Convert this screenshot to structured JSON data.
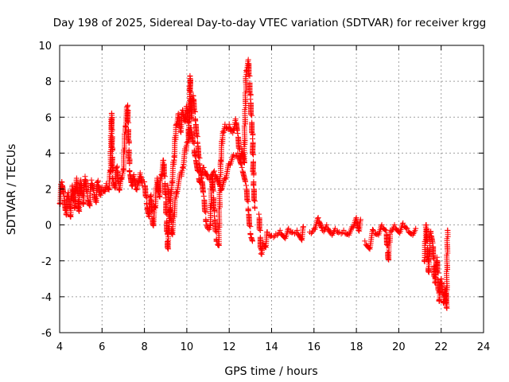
{
  "chart_data": {
    "type": "scatter",
    "title": "Day 198 of 2025, Sidereal Day-to-day VTEC variation (SDTVAR) for receiver krgg",
    "xlabel": "GPS time / hours",
    "ylabel": "SDTVAR / TECUs",
    "xlim": [
      4,
      24
    ],
    "ylim": [
      -6,
      10
    ],
    "x_ticks": [
      "4",
      "6",
      "8",
      "10",
      "12",
      "14",
      "16",
      "18",
      "20",
      "22",
      "24"
    ],
    "y_ticks": [
      "-6",
      "-4",
      "-2",
      "0",
      "2",
      "4",
      "6",
      "8",
      "10"
    ],
    "grid": true,
    "marker": "+",
    "series": [
      {
        "name": "SDTVAR",
        "color": "#ff0000",
        "segments": [
          [
            [
              4.0,
              1.2
            ],
            [
              4.1,
              2.4
            ],
            [
              4.2,
              1.6
            ],
            [
              4.3,
              0.6
            ],
            [
              4.4,
              1.8
            ],
            [
              4.5,
              0.5
            ],
            [
              4.6,
              2.2
            ],
            [
              4.7,
              1.0
            ],
            [
              4.8,
              2.6
            ],
            [
              4.9,
              0.8
            ],
            [
              5.0,
              2.5
            ],
            [
              5.1,
              1.2
            ],
            [
              5.2,
              2.7
            ],
            [
              5.3,
              1.6
            ],
            [
              5.4,
              1.1
            ],
            [
              5.5,
              2.5
            ],
            [
              5.6,
              1.9
            ],
            [
              5.7,
              1.3
            ],
            [
              5.8,
              2.4
            ],
            [
              5.9,
              1.7
            ],
            [
              6.0,
              2.1
            ],
            [
              6.1,
              1.9
            ],
            [
              6.2,
              2.3
            ],
            [
              6.3,
              2.0
            ],
            [
              6.4,
              3.0
            ],
            [
              6.45,
              6.2
            ],
            [
              6.5,
              2.6
            ],
            [
              6.6,
              2.1
            ],
            [
              6.7,
              3.2
            ],
            [
              6.8,
              2.0
            ],
            [
              6.9,
              2.6
            ],
            [
              7.0,
              3.1
            ],
            [
              7.1,
              5.5
            ],
            [
              7.2,
              6.6
            ],
            [
              7.3,
              3.0
            ],
            [
              7.4,
              2.2
            ],
            [
              7.5,
              2.8
            ],
            [
              7.6,
              2.0
            ],
            [
              7.7,
              2.4
            ],
            [
              7.8,
              2.9
            ],
            [
              7.9,
              2.2
            ]
          ],
          [
            [
              8.0,
              2.4
            ],
            [
              8.1,
              1.2
            ],
            [
              8.2,
              0.5
            ],
            [
              8.3,
              1.6
            ],
            [
              8.4,
              0.0
            ],
            [
              8.5,
              1.0
            ],
            [
              8.6,
              2.6
            ],
            [
              8.7,
              1.6
            ],
            [
              8.8,
              2.8
            ],
            [
              8.9,
              3.6
            ],
            [
              9.0,
              1.5
            ],
            [
              9.1,
              -1.3
            ],
            [
              9.2,
              0.8
            ],
            [
              9.3,
              2.4
            ],
            [
              9.4,
              3.8
            ],
            [
              9.5,
              5.6
            ],
            [
              9.6,
              6.2
            ],
            [
              9.7,
              5.2
            ],
            [
              9.8,
              6.4
            ],
            [
              9.9,
              5.8
            ],
            [
              10.0,
              6.6
            ],
            [
              10.1,
              4.8
            ],
            [
              10.15,
              8.3
            ],
            [
              10.2,
              6.0
            ],
            [
              10.3,
              7.2
            ],
            [
              10.4,
              5.8
            ],
            [
              10.5,
              4.6
            ],
            [
              10.6,
              3.4
            ],
            [
              10.7,
              2.6
            ],
            [
              10.8,
              1.6
            ],
            [
              10.9,
              0.2
            ],
            [
              11.0,
              -0.2
            ],
            [
              11.1,
              0.0
            ],
            [
              11.2,
              2.8
            ],
            [
              11.3,
              0.5
            ],
            [
              11.4,
              -0.9
            ],
            [
              11.5,
              -1.1
            ],
            [
              11.6,
              3.6
            ],
            [
              11.7,
              5.2
            ],
            [
              11.8,
              5.6
            ],
            [
              11.9,
              5.4
            ],
            [
              12.0,
              5.6
            ],
            [
              12.1,
              5.2
            ],
            [
              12.2,
              5.3
            ],
            [
              12.3,
              5.9
            ],
            [
              12.4,
              5.1
            ],
            [
              12.5,
              3.8
            ],
            [
              12.6,
              4.2
            ],
            [
              12.7,
              3.5
            ],
            [
              12.8,
              8.6
            ],
            [
              12.9,
              9.2
            ],
            [
              13.0,
              7.0
            ],
            [
              13.1,
              4.8
            ],
            [
              13.15,
              2.2
            ],
            [
              13.2,
              1.0
            ]
          ],
          [
            [
              9.1,
              2.2
            ],
            [
              9.3,
              -0.5
            ],
            [
              9.5,
              1.8
            ],
            [
              9.8,
              3.2
            ],
            [
              10.0,
              4.6
            ],
            [
              10.2,
              5.4
            ],
            [
              10.4,
              3.8
            ],
            [
              10.6,
              2.4
            ],
            [
              10.8,
              3.2
            ],
            [
              11.0,
              2.6
            ],
            [
              11.3,
              3.0
            ],
            [
              11.6,
              2.0
            ],
            [
              11.8,
              2.6
            ],
            [
              12.0,
              3.4
            ],
            [
              12.2,
              3.9
            ],
            [
              12.4,
              4.0
            ],
            [
              12.6,
              3.2
            ],
            [
              12.8,
              2.2
            ],
            [
              12.9,
              0.8
            ],
            [
              13.0,
              -0.5
            ],
            [
              13.1,
              -0.9
            ]
          ],
          [
            [
              13.4,
              0.6
            ],
            [
              13.5,
              -1.6
            ],
            [
              13.6,
              -1.0
            ],
            [
              13.7,
              -1.2
            ],
            [
              13.8,
              -0.4
            ],
            [
              14.0,
              -0.6
            ],
            [
              14.2,
              -0.5
            ],
            [
              14.4,
              -0.3
            ],
            [
              14.6,
              -0.7
            ],
            [
              14.8,
              -0.2
            ],
            [
              15.0,
              -0.4
            ],
            [
              15.2,
              -0.3
            ],
            [
              15.4,
              -0.8
            ],
            [
              15.5,
              -0.1
            ]
          ],
          [
            [
              15.8,
              -0.4
            ],
            [
              16.0,
              -0.2
            ],
            [
              16.2,
              0.4
            ],
            [
              16.4,
              -0.3
            ],
            [
              16.6,
              0.0
            ],
            [
              16.8,
              -0.5
            ],
            [
              17.0,
              -0.2
            ],
            [
              17.2,
              -0.4
            ],
            [
              17.4,
              -0.3
            ],
            [
              17.6,
              -0.5
            ],
            [
              17.8,
              -0.1
            ],
            [
              18.0,
              0.4
            ],
            [
              18.1,
              -0.3
            ],
            [
              18.2,
              0.3
            ]
          ],
          [
            [
              18.4,
              -0.9
            ],
            [
              18.6,
              -1.3
            ],
            [
              18.8,
              -0.3
            ],
            [
              19.0,
              -0.5
            ],
            [
              19.2,
              0.0
            ],
            [
              19.4,
              -0.3
            ],
            [
              19.5,
              -1.9
            ],
            [
              19.6,
              -0.3
            ],
            [
              19.8,
              0.0
            ],
            [
              20.0,
              -0.4
            ],
            [
              20.2,
              0.1
            ],
            [
              20.4,
              -0.2
            ],
            [
              20.6,
              -0.5
            ],
            [
              20.8,
              -0.2
            ]
          ],
          [
            [
              21.2,
              -2.0
            ],
            [
              21.3,
              0.0
            ],
            [
              21.4,
              -2.6
            ],
            [
              21.5,
              -0.4
            ],
            [
              21.6,
              -1.0
            ],
            [
              21.7,
              -3.2
            ],
            [
              21.8,
              -1.8
            ],
            [
              21.9,
              -4.2
            ],
            [
              22.0,
              -3.0
            ],
            [
              22.1,
              -4.3
            ],
            [
              22.2,
              -3.6
            ],
            [
              22.25,
              -4.6
            ],
            [
              22.3,
              -0.3
            ]
          ]
        ]
      }
    ]
  }
}
